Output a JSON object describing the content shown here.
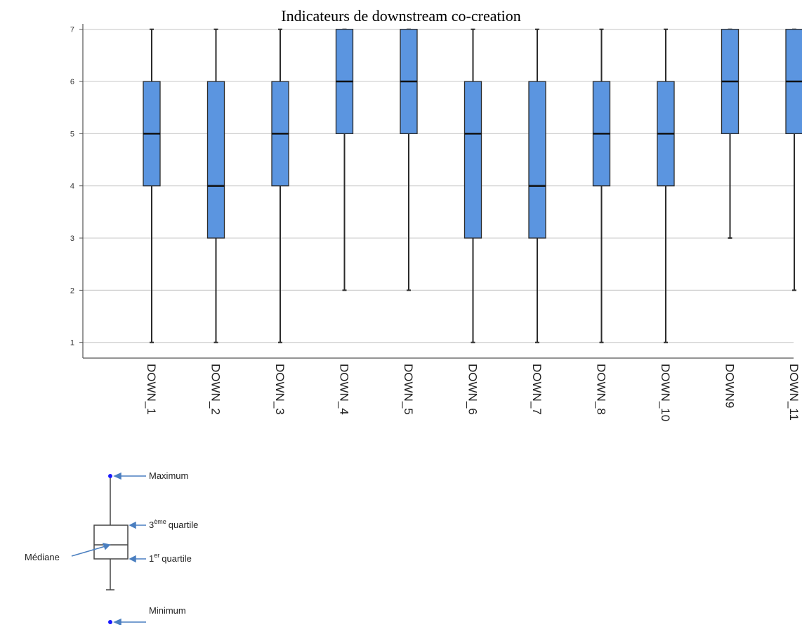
{
  "chart_data": {
    "type": "boxplot",
    "title": "Indicateurs de downstream co-creation",
    "xlabel": "",
    "ylabel": "",
    "ylim": [
      0.7,
      7.05
    ],
    "yticks": [
      1,
      2,
      3,
      4,
      5,
      6,
      7
    ],
    "grid": true,
    "colors": {
      "box_fill": "#5b95e0",
      "box_stroke": "#2b2b2b",
      "grid": "#cfcfcf",
      "axis": "#555555"
    },
    "categories": [
      "DOWN_1",
      "DOWN_2",
      "DOWN_3",
      "DOWN_4",
      "DOWN_5",
      "DOWN_6",
      "DOWN_7",
      "DOWN_8",
      "DOWN_10",
      "DOWN9",
      "DOWN_11"
    ],
    "boxes": [
      {
        "min": 1,
        "q1": 4,
        "median": 5,
        "q3": 6,
        "max": 7
      },
      {
        "min": 1,
        "q1": 3,
        "median": 4,
        "q3": 6,
        "max": 7
      },
      {
        "min": 1,
        "q1": 4,
        "median": 5,
        "q3": 6,
        "max": 7
      },
      {
        "min": 2,
        "q1": 5,
        "median": 6,
        "q3": 7,
        "max": 7
      },
      {
        "min": 2,
        "q1": 5,
        "median": 6,
        "q3": 7,
        "max": 7
      },
      {
        "min": 1,
        "q1": 3,
        "median": 5,
        "q3": 6,
        "max": 7
      },
      {
        "min": 1,
        "q1": 3,
        "median": 4,
        "q3": 6,
        "max": 7
      },
      {
        "min": 1,
        "q1": 4,
        "median": 5,
        "q3": 6,
        "max": 7
      },
      {
        "min": 1,
        "q1": 4,
        "median": 5,
        "q3": 6,
        "max": 7
      },
      {
        "min": 3,
        "q1": 5,
        "median": 6,
        "q3": 7,
        "max": 7
      },
      {
        "min": 2,
        "q1": 5,
        "median": 6,
        "q3": 7,
        "max": 7
      }
    ]
  },
  "legend": {
    "maximum": "Maximum",
    "third_quartile_num": "3",
    "third_quartile_sup": "ème",
    "third_quartile_rest": "quartile",
    "median": "Médiane",
    "first_quartile_num": "1",
    "first_quartile_sup": "er",
    "first_quartile_rest": "quartile",
    "minimum": "Minimum",
    "colors": {
      "point": "#1a1aff",
      "arrow": "#4a7fc0",
      "box": "#444444"
    }
  }
}
